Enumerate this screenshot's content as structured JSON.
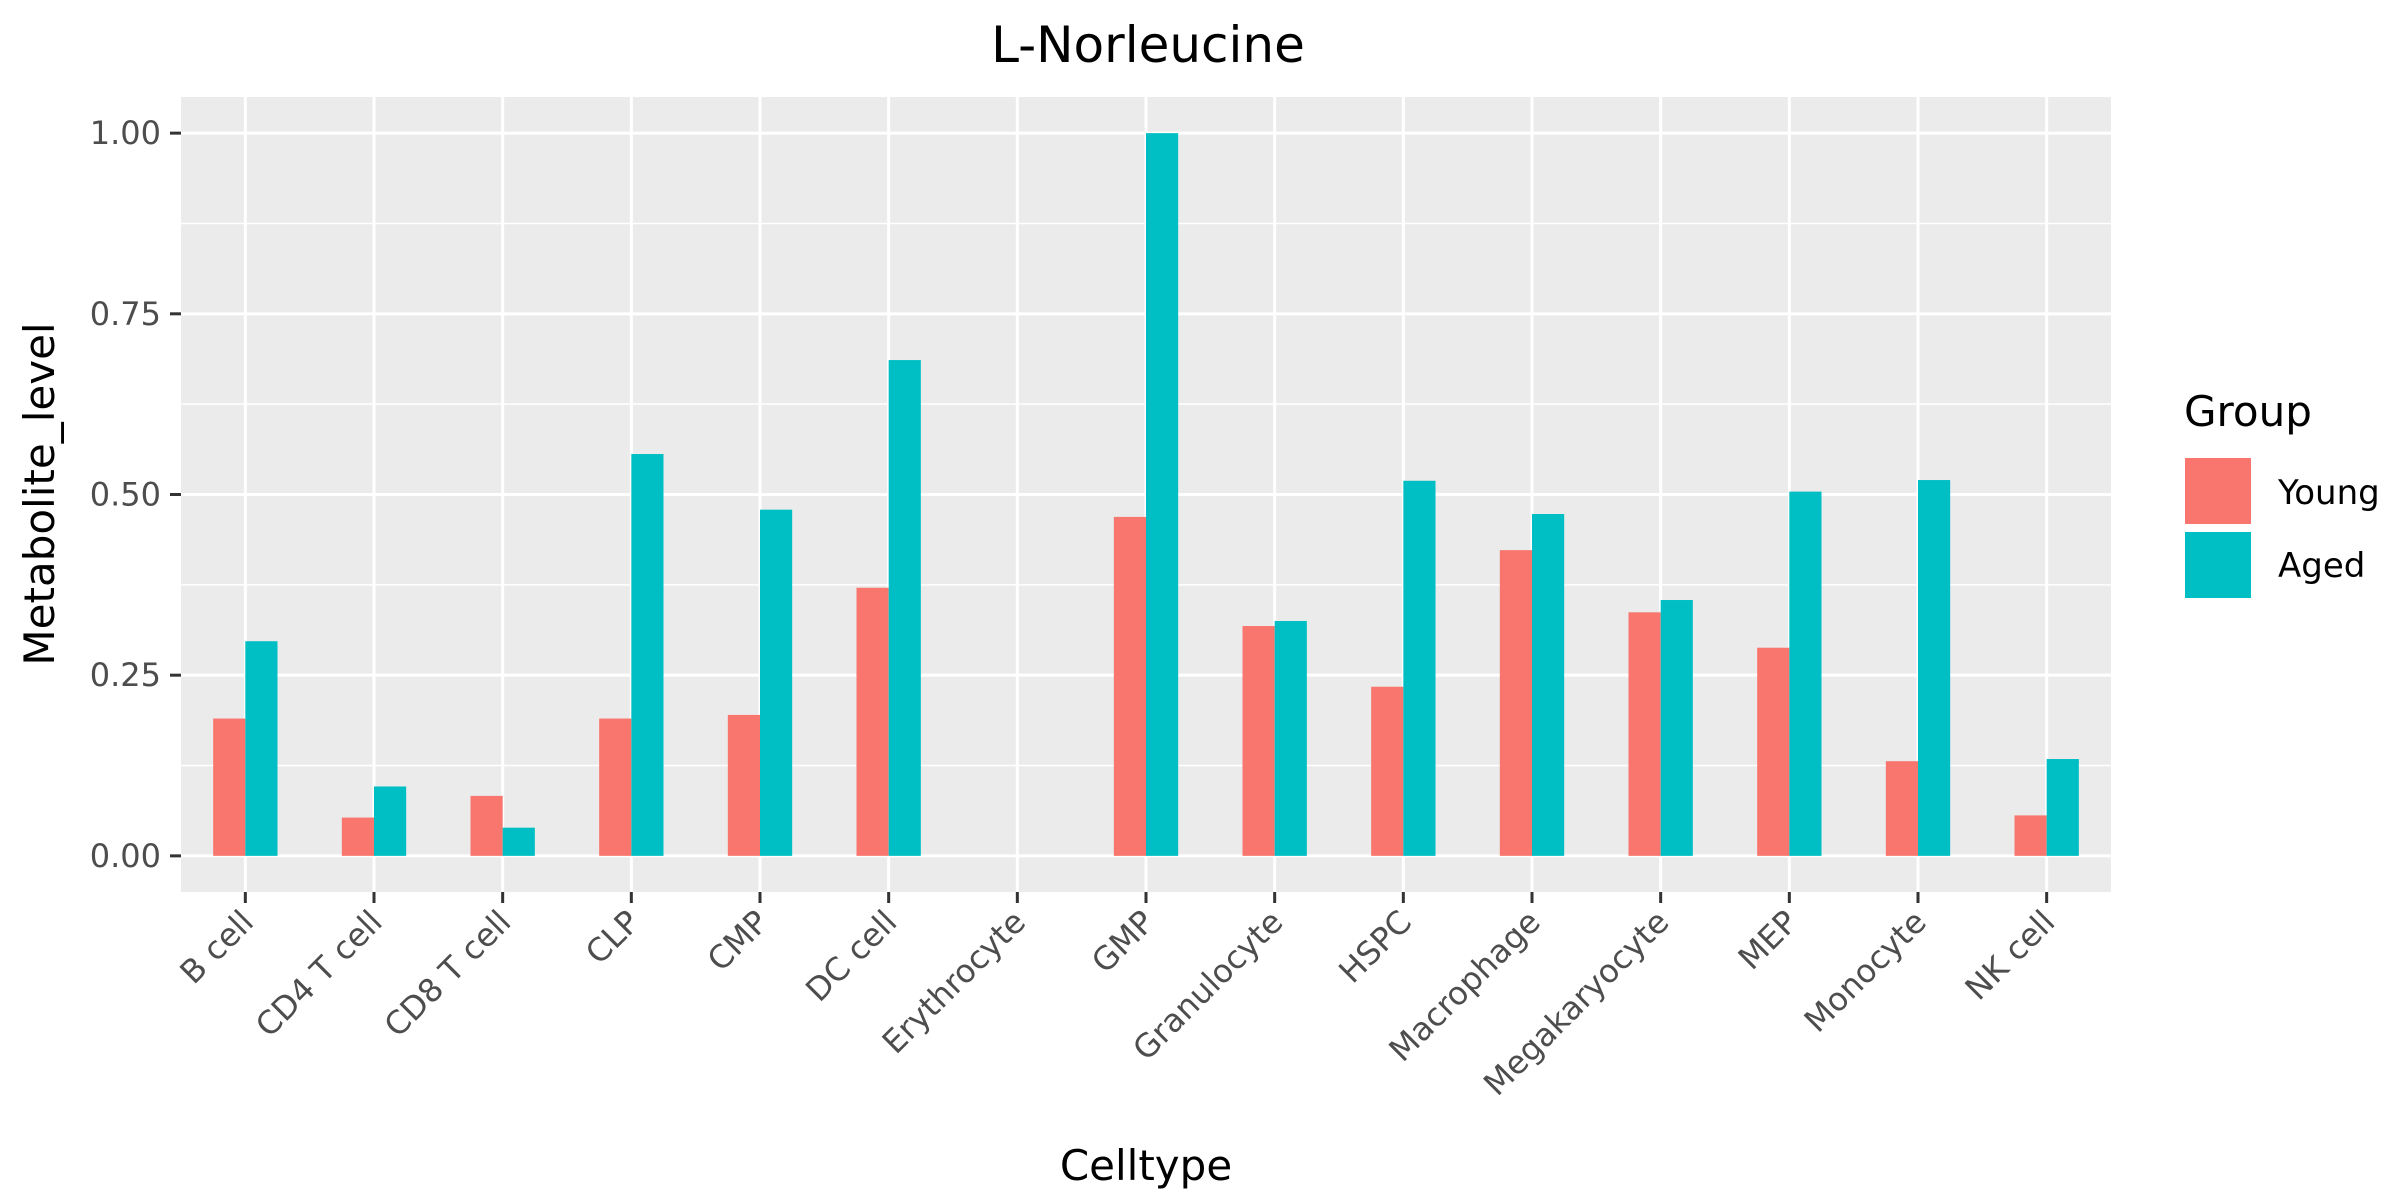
{
  "chart_data": {
    "type": "bar",
    "title": "L-Norleucine",
    "xlabel": "Celltype",
    "ylabel": "Metabolite_level",
    "ylim": [
      -0.05,
      1.05
    ],
    "yticks": [
      0.0,
      0.25,
      0.5,
      0.75,
      1.0
    ],
    "ytick_labels": [
      "0.00",
      "0.25",
      "0.50",
      "0.75",
      "1.00"
    ],
    "grid": true,
    "legend": {
      "title": "Group",
      "placement": "right"
    },
    "categories": [
      "B cell",
      "CD4 T cell",
      "CD8 T cell",
      "CLP",
      "CMP",
      "DC cell",
      "Erythrocyte",
      "GMP",
      "Granulocyte",
      "HSPC",
      "Macrophage",
      "Megakaryocyte",
      "MEP",
      "Monocyte",
      "NK cell"
    ],
    "series": [
      {
        "name": "Young",
        "color": "#F8766D",
        "values": [
          0.19,
          0.053,
          0.083,
          0.19,
          0.195,
          0.371,
          0.0,
          0.469,
          0.318,
          0.234,
          0.423,
          0.337,
          0.288,
          0.131,
          0.056
        ]
      },
      {
        "name": "Aged",
        "color": "#00BFC4",
        "values": [
          0.297,
          0.096,
          0.039,
          0.556,
          0.479,
          0.686,
          0.0,
          1.0,
          0.325,
          0.519,
          0.473,
          0.354,
          0.504,
          0.52,
          0.134
        ]
      }
    ]
  }
}
